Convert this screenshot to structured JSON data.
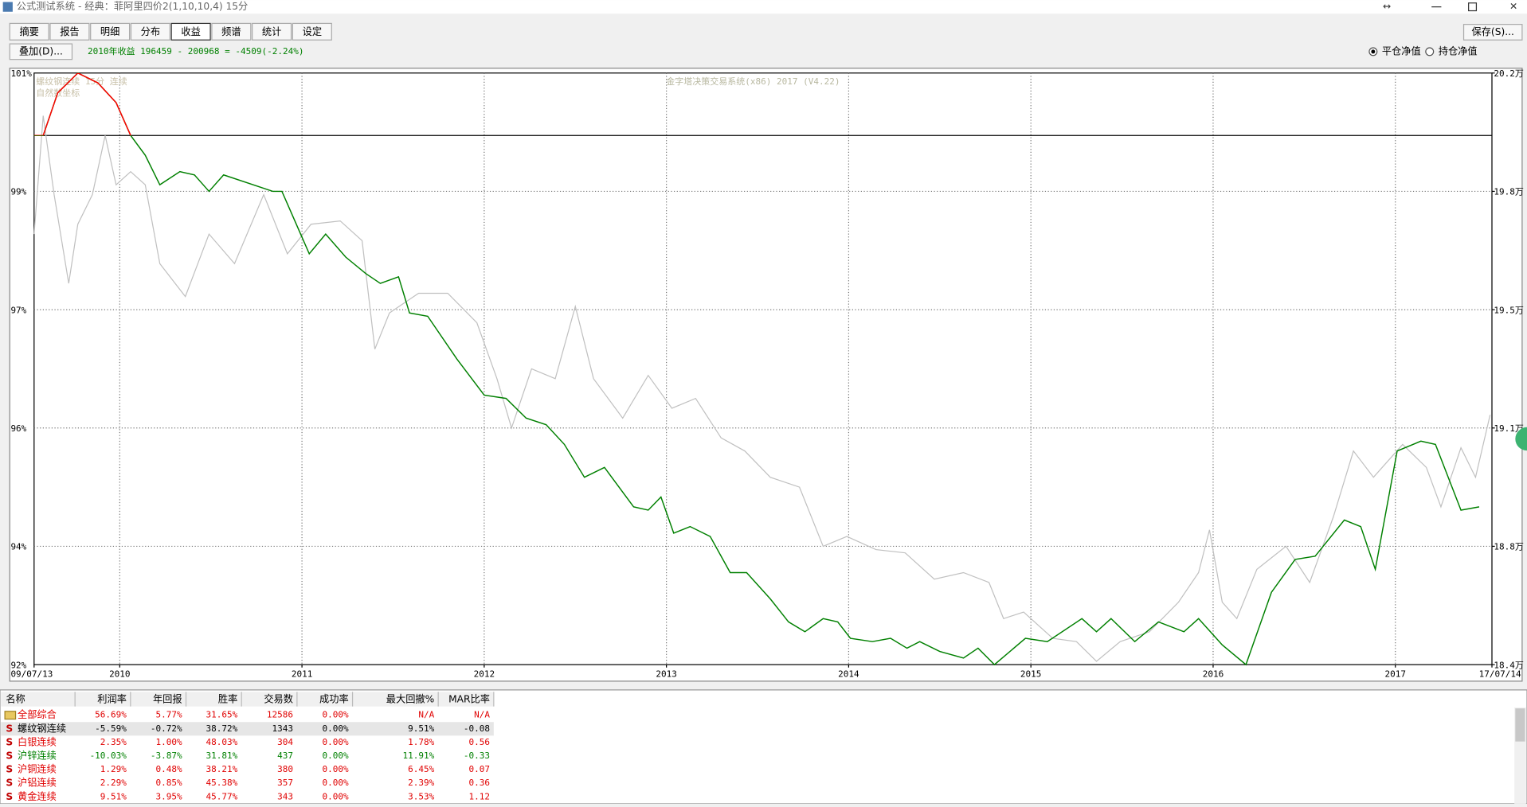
{
  "window": {
    "title": "公式测试系统 - 经典：菲阿里四价2(1,10,10,4) 15分"
  },
  "tabs": {
    "items": [
      "摘要",
      "报告",
      "明细",
      "分布",
      "收益",
      "频谱",
      "统计",
      "设定"
    ],
    "active": 4
  },
  "toolbar": {
    "overlay_button": "叠加(D)...",
    "status": "2010年收益 196459 - 200968 = -4509(-2.24%)",
    "save_button": "保存(S)...",
    "radio": [
      "平仓净值",
      "持仓净值"
    ],
    "radio_checked": 0
  },
  "chart": {
    "type": "line",
    "watermark": "金字塔决策交易系统(x86) 2017 (V4.22)",
    "overlay_labels": [
      "螺纹钢连续 15分 连续",
      "自然数坐标"
    ],
    "xlim": [
      2009.53,
      2017.53
    ],
    "xticks": [
      {
        "value": 2009.53,
        "label": "09/07/13"
      },
      2010,
      2011,
      2012,
      2013,
      2014,
      2015,
      2016,
      2017,
      {
        "value": 2017.53,
        "label": "17/07/14"
      }
    ],
    "ylim": [
      18.4,
      20.2
    ],
    "yticks": [
      {
        "value": 20.2,
        "label": "20.2万"
      },
      {
        "value": 19.84,
        "label": "19.8万"
      },
      {
        "value": 19.48,
        "label": "19.5万"
      },
      {
        "value": 19.12,
        "label": "19.1万"
      },
      {
        "value": 18.76,
        "label": "18.8万"
      },
      {
        "value": 18.4,
        "label": "18.4万"
      }
    ],
    "left_tick_labels": [
      "101%",
      "99%",
      "97%",
      "96%",
      "94%",
      "92%"
    ],
    "baseline": 20.01,
    "grid": true,
    "series": [
      {
        "color": "#c0c0c0",
        "x": [
          2009.53,
          2009.58,
          2009.64,
          2009.72,
          2009.77,
          2009.85,
          2009.92,
          2009.98,
          2010.06,
          2010.14,
          2010.22,
          2010.36,
          2010.49,
          2010.63,
          2010.79,
          2010.92,
          2011.05,
          2011.21,
          2011.33,
          2011.4,
          2011.48,
          2011.64,
          2011.8,
          2011.96,
          2012.07,
          2012.15,
          2012.26,
          2012.39,
          2012.5,
          2012.6,
          2012.76,
          2012.9,
          2013.03,
          2013.16,
          2013.3,
          2013.43,
          2013.57,
          2013.73,
          2013.86,
          2013.99,
          2014.15,
          2014.31,
          2014.47,
          2014.63,
          2014.77,
          2014.85,
          2014.96,
          2015.12,
          2015.25,
          2015.36,
          2015.49,
          2015.65,
          2015.81,
          2015.92,
          2015.98,
          2016.05,
          2016.13,
          2016.24,
          2016.4,
          2016.53,
          2016.66,
          2016.77,
          2016.88,
          2017.04,
          2017.17,
          2017.25,
          2017.36,
          2017.44,
          2017.52
        ],
        "values": [
          19.71,
          20.07,
          19.83,
          19.56,
          19.74,
          19.83,
          20.01,
          19.86,
          19.9,
          19.86,
          19.62,
          19.52,
          19.71,
          19.62,
          19.83,
          19.65,
          19.74,
          19.75,
          19.69,
          19.36,
          19.47,
          19.53,
          19.53,
          19.44,
          19.27,
          19.12,
          19.3,
          19.27,
          19.49,
          19.27,
          19.15,
          19.28,
          19.18,
          19.21,
          19.09,
          19.05,
          18.97,
          18.94,
          18.76,
          18.79,
          18.75,
          18.74,
          18.66,
          18.68,
          18.65,
          18.54,
          18.56,
          18.48,
          18.47,
          18.41,
          18.47,
          18.5,
          18.59,
          18.68,
          18.81,
          18.59,
          18.54,
          18.69,
          18.76,
          18.65,
          18.85,
          19.05,
          18.97,
          19.07,
          19.0,
          18.88,
          19.06,
          18.97,
          19.16
        ]
      },
      {
        "color": "#008000",
        "above_color": "#ff0000",
        "x": [
          2009.53,
          2009.58,
          2009.66,
          2009.77,
          2009.88,
          2009.98,
          2010.06,
          2010.14,
          2010.22,
          2010.33,
          2010.41,
          2010.49,
          2010.57,
          2010.84,
          2010.89,
          2011.04,
          2011.13,
          2011.24,
          2011.35,
          2011.43,
          2011.53,
          2011.59,
          2011.69,
          2011.85,
          2012.0,
          2012.12,
          2012.23,
          2012.34,
          2012.44,
          2012.55,
          2012.66,
          2012.82,
          2012.9,
          2012.97,
          2013.04,
          2013.13,
          2013.24,
          2013.35,
          2013.44,
          2013.57,
          2013.67,
          2013.76,
          2013.86,
          2013.94,
          2014.01,
          2014.13,
          2014.23,
          2014.32,
          2014.39,
          2014.5,
          2014.63,
          2014.71,
          2014.8,
          2014.97,
          2015.09,
          2015.28,
          2015.36,
          2015.44,
          2015.57,
          2015.7,
          2015.84,
          2015.92,
          2016.05,
          2016.18,
          2016.32,
          2016.45,
          2016.56,
          2016.72,
          2016.81,
          2016.89,
          2017.01,
          2017.14,
          2017.22,
          2017.36,
          2017.46
        ],
        "values": [
          20.01,
          20.01,
          20.14,
          20.2,
          20.17,
          20.11,
          20.01,
          19.95,
          19.86,
          19.9,
          19.89,
          19.84,
          19.89,
          19.84,
          19.84,
          19.65,
          19.71,
          19.64,
          19.59,
          19.56,
          19.58,
          19.47,
          19.46,
          19.33,
          19.22,
          19.21,
          19.15,
          19.13,
          19.07,
          18.97,
          19.0,
          18.88,
          18.87,
          18.91,
          18.8,
          18.82,
          18.79,
          18.68,
          18.68,
          18.6,
          18.53,
          18.5,
          18.54,
          18.53,
          18.48,
          18.47,
          18.48,
          18.45,
          18.47,
          18.44,
          18.42,
          18.45,
          18.4,
          18.48,
          18.47,
          18.54,
          18.5,
          18.54,
          18.47,
          18.53,
          18.5,
          18.54,
          18.46,
          18.4,
          18.62,
          18.72,
          18.73,
          18.84,
          18.82,
          18.69,
          19.05,
          19.08,
          19.07,
          18.87,
          18.88
        ]
      }
    ]
  },
  "table": {
    "columns": [
      "名称",
      "利润率",
      "年回报",
      "胜率",
      "交易数",
      "成功率",
      "最大回撤%",
      "MAR比率"
    ],
    "rows": [
      {
        "icon": null,
        "color": "#e00000",
        "cells": [
          "全部综合",
          "56.69%",
          "5.77%",
          "31.65%",
          "12586",
          "0.00%",
          "N/A",
          "N/A"
        ]
      },
      {
        "icon": "S",
        "color": "#000000",
        "selected": true,
        "cells": [
          "螺纹钢连续",
          "-5.59%",
          "-0.72%",
          "38.72%",
          "1343",
          "0.00%",
          "9.51%",
          "-0.08"
        ]
      },
      {
        "icon": "S",
        "color": "#e00000",
        "cells": [
          "白银连续",
          "2.35%",
          "1.00%",
          "48.03%",
          "304",
          "0.00%",
          "1.78%",
          "0.56"
        ]
      },
      {
        "icon": "S",
        "color": "#008000",
        "cells": [
          "沪锌连续",
          "-10.03%",
          "-3.87%",
          "31.81%",
          "437",
          "0.00%",
          "11.91%",
          "-0.33"
        ]
      },
      {
        "icon": "S",
        "color": "#e00000",
        "cells": [
          "沪铜连续",
          "1.29%",
          "0.48%",
          "38.21%",
          "380",
          "0.00%",
          "6.45%",
          "0.07"
        ]
      },
      {
        "icon": "S",
        "color": "#e00000",
        "cells": [
          "沪铝连续",
          "2.29%",
          "0.85%",
          "45.38%",
          "357",
          "0.00%",
          "2.39%",
          "0.36"
        ]
      },
      {
        "icon": "S",
        "color": "#e00000",
        "cells": [
          "黄金连续",
          "9.51%",
          "3.95%",
          "45.77%",
          "343",
          "0.00%",
          "3.53%",
          "1.12"
        ]
      }
    ]
  }
}
